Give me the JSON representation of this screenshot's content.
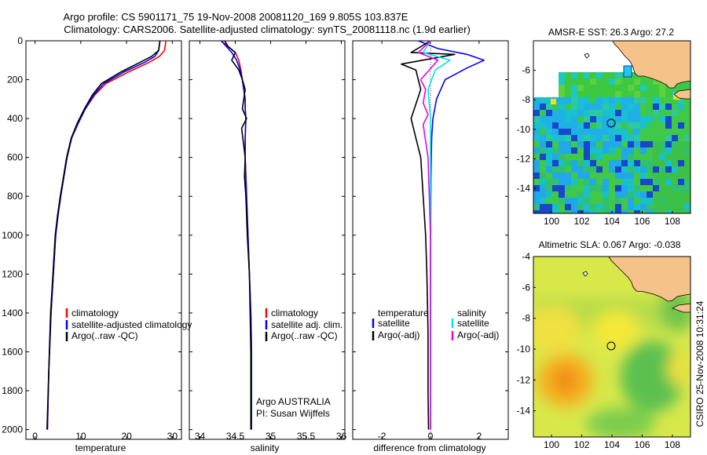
{
  "header": {
    "title_line1": "Argo profile: CS 5901171_75 19-Nov-2008 20081120_169 9.805S 103.837E",
    "title_line2": "Climatology: CARS2006. Satellite-adjusted climatology: synTS_20081118.nc (1.9d earlier)"
  },
  "credit": "CSIRO 25-Nov-2008 10:31:24",
  "colors": {
    "climatology": "#ff0000",
    "satellite": "#0000ff",
    "argo": "#000000",
    "diff_satellite": "#00e5ee",
    "diff_argo": "#ee00ee",
    "land": "#f5c38a"
  },
  "chart_data": [
    {
      "type": "line",
      "name": "temperature-profile",
      "xlabel": "temperature",
      "ylabel": "",
      "xlim": [
        -2,
        32
      ],
      "ylim": [
        2050,
        0
      ],
      "xticks": [
        0,
        10,
        20,
        30
      ],
      "yticks": [
        0,
        200,
        400,
        600,
        800,
        1000,
        1200,
        1400,
        1600,
        1800,
        2000
      ],
      "legend": [
        "climatology",
        "satellite-adjusted climatology",
        "Argo(..raw -QC)"
      ],
      "legend_position": "lower-middle",
      "series": [
        {
          "name": "climatology",
          "color": "#ff0000",
          "x": [
            28.6,
            28.3,
            27.2,
            25.0,
            20.5,
            15.5,
            13.0,
            11.0,
            9.5,
            8.0,
            7.0,
            6.3,
            5.6,
            5.0,
            4.5,
            4.0,
            3.5,
            3.0,
            2.7
          ],
          "y": [
            0,
            50,
            80,
            110,
            160,
            220,
            280,
            350,
            420,
            500,
            600,
            700,
            800,
            900,
            1000,
            1200,
            1400,
            1700,
            2000
          ]
        },
        {
          "name": "satellite-adjusted climatology",
          "color": "#0000ff",
          "x": [
            27.3,
            27.0,
            26.2,
            24.0,
            19.5,
            15.0,
            12.8,
            11.0,
            9.5,
            8.0,
            7.0,
            6.3,
            5.6,
            5.0,
            4.5,
            4.0,
            3.5,
            3.0,
            2.7
          ],
          "y": [
            0,
            50,
            80,
            110,
            160,
            220,
            280,
            350,
            420,
            500,
            600,
            700,
            800,
            900,
            1000,
            1200,
            1400,
            1700,
            2000
          ]
        },
        {
          "name": "Argo(..raw -QC)",
          "color": "#000000",
          "x": [
            27.3,
            27.0,
            25.5,
            23.0,
            18.8,
            14.5,
            12.5,
            10.8,
            9.3,
            7.9,
            6.9,
            6.2,
            5.5,
            4.9,
            4.4,
            3.9,
            3.4,
            3.0,
            2.6
          ],
          "y": [
            0,
            50,
            80,
            110,
            160,
            220,
            280,
            350,
            420,
            500,
            600,
            700,
            800,
            900,
            1000,
            1200,
            1400,
            1700,
            2000
          ]
        }
      ]
    },
    {
      "type": "line",
      "name": "salinity-profile",
      "xlabel": "salinity",
      "ylabel": "",
      "xlim": [
        33.85,
        36.05
      ],
      "ylim": [
        2050,
        0
      ],
      "xticks": [
        34,
        34.5,
        35,
        35.5,
        36
      ],
      "legend": [
        "climatology",
        "satellite adj. clim.",
        "Argo(..raw -QC)"
      ],
      "legend_position": "lower-right",
      "annotation": [
        "Argo AUSTRALIA",
        "PI: Susan Wijffels"
      ],
      "series": [
        {
          "name": "climatology",
          "color": "#ff0000",
          "x": [
            34.3,
            34.5,
            34.55,
            34.58,
            34.6,
            34.62,
            34.64,
            34.64,
            34.65,
            34.64,
            34.64,
            34.65,
            34.66,
            34.68,
            34.7,
            34.72,
            34.73,
            34.73,
            34.73
          ],
          "y": [
            0,
            60,
            100,
            150,
            200,
            250,
            300,
            350,
            400,
            500,
            600,
            700,
            800,
            1000,
            1200,
            1400,
            1600,
            1800,
            2000
          ]
        },
        {
          "name": "satellite adj. clim.",
          "color": "#0000ff",
          "x": [
            34.3,
            34.45,
            34.52,
            34.57,
            34.6,
            34.62,
            34.64,
            34.64,
            34.65,
            34.64,
            34.64,
            34.65,
            34.66,
            34.68,
            34.7,
            34.72,
            34.73,
            34.73,
            34.73
          ],
          "y": [
            0,
            60,
            100,
            150,
            200,
            250,
            300,
            350,
            400,
            500,
            600,
            700,
            800,
            1000,
            1200,
            1400,
            1600,
            1800,
            2000
          ]
        },
        {
          "name": "Argo(..raw -QC)",
          "color": "#000000",
          "x": [
            34.35,
            34.4,
            34.5,
            34.45,
            34.55,
            34.6,
            34.64,
            34.6,
            34.66,
            34.59,
            34.64,
            34.63,
            34.65,
            34.67,
            34.7,
            34.71,
            34.72,
            34.72,
            34.72
          ],
          "y": [
            0,
            30,
            60,
            100,
            150,
            200,
            250,
            350,
            400,
            450,
            600,
            700,
            800,
            1000,
            1200,
            1400,
            1600,
            1800,
            2000
          ]
        }
      ]
    },
    {
      "type": "line",
      "name": "difference-profile",
      "xlabel": "difference from climatology",
      "ylabel": "",
      "xlim": [
        -3.2,
        3.2
      ],
      "ylim": [
        2050,
        0
      ],
      "xticks": [
        -2,
        0,
        2
      ],
      "legend_groups": [
        {
          "title": "temperature",
          "items": [
            "satellite",
            "Argo(-adj)"
          ],
          "colors": [
            "#0000ff",
            "#000000"
          ]
        },
        {
          "title": "salinity",
          "items": [
            "satellite",
            "Argo(-adj)"
          ],
          "colors": [
            "#00e5ee",
            "#ee00ee"
          ]
        }
      ],
      "series": [
        {
          "name": "temperature satellite",
          "color": "#0000ff",
          "x": [
            -0.5,
            0.3,
            1.5,
            2.2,
            1.5,
            0.6,
            0.25,
            0.1,
            0.05,
            0.02,
            0.01,
            0.0,
            0.0,
            0.0,
            0.0
          ],
          "y": [
            0,
            40,
            70,
            100,
            140,
            200,
            300,
            400,
            500,
            700,
            900,
            1200,
            1500,
            1800,
            2000
          ]
        },
        {
          "name": "temperature Argo(-adj)",
          "color": "#000000",
          "x": [
            0.0,
            -0.8,
            1.0,
            -1.2,
            -0.6,
            -0.4,
            -0.8,
            -0.6,
            -0.4,
            -0.3,
            -0.2,
            -0.15,
            -0.1,
            -0.1,
            -0.08
          ],
          "y": [
            0,
            60,
            70,
            120,
            150,
            250,
            400,
            500,
            600,
            800,
            1000,
            1200,
            1500,
            1800,
            2000
          ]
        },
        {
          "name": "salinity satellite",
          "color": "#00e5ee",
          "x": [
            0.0,
            -0.3,
            0.8,
            0.2,
            -0.1,
            0.0,
            0.0,
            0.0,
            0.0,
            0.0,
            0.0,
            0.0,
            0.0,
            0.0
          ],
          "y": [
            0,
            60,
            100,
            150,
            250,
            400,
            600,
            800,
            1000,
            1200,
            1400,
            1600,
            1800,
            2000
          ]
        },
        {
          "name": "salinity Argo(-adj)",
          "color": "#ee00ee",
          "x": [
            0.0,
            -0.5,
            0.3,
            -0.4,
            -0.2,
            -0.3,
            -0.1,
            -0.3,
            -0.1,
            -0.05,
            0.0,
            0.0,
            0.0,
            0.0
          ],
          "y": [
            0,
            60,
            100,
            200,
            250,
            320,
            380,
            430,
            600,
            800,
            1000,
            1300,
            1600,
            2000
          ]
        }
      ]
    },
    {
      "type": "heatmap",
      "name": "sst-map",
      "title": "AMSR-E SST: 26.3 Argo: 27.2",
      "xlim": [
        98.8,
        109.2
      ],
      "ylim": [
        -15.7,
        -4.0
      ],
      "xticks": [
        100,
        102,
        104,
        106,
        108
      ],
      "yticks": [
        -6,
        -8,
        -10,
        -12,
        -14
      ],
      "float_position": {
        "lon": 103.837,
        "lat": -9.805
      }
    },
    {
      "type": "heatmap",
      "name": "sla-map",
      "title": "Altimetric SLA: 0.067 Argo: -0.038",
      "xlim": [
        98.8,
        109.2
      ],
      "ylim": [
        -15.7,
        -4.0
      ],
      "xticks": [
        100,
        102,
        104,
        106,
        108
      ],
      "yticks": [
        -4,
        -6,
        -8,
        -10,
        -12,
        -14
      ],
      "float_position": {
        "lon": 103.837,
        "lat": -9.805
      }
    }
  ]
}
